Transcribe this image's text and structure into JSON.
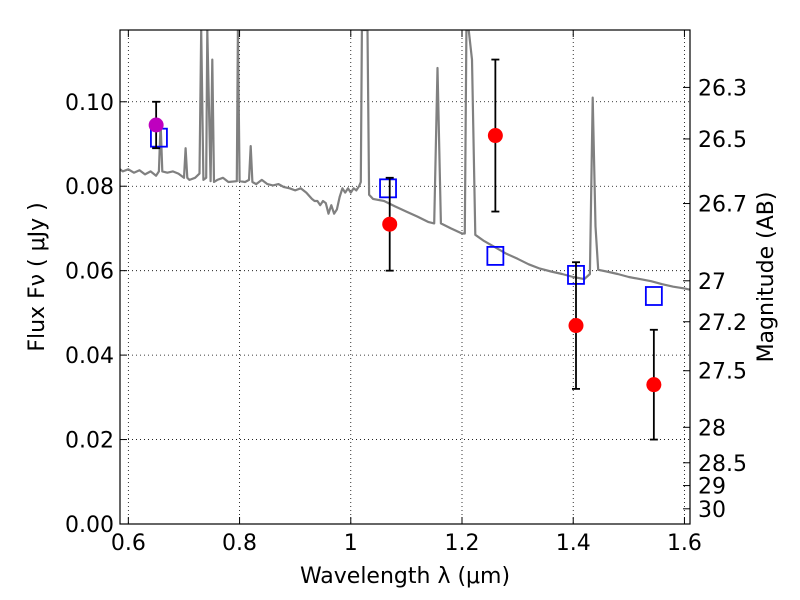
{
  "chart_data": {
    "type": "scatter",
    "xlabel": "Wavelength  λ (μm)",
    "ylabel": "Flux  Fν  ( μJy )",
    "ylabel_right": "Magnitude (AB)",
    "xlim": [
      0.585,
      1.61
    ],
    "ylim": [
      0.0,
      0.117
    ],
    "grid": true,
    "x_ticks": [
      0.6,
      0.8,
      1.0,
      1.2,
      1.4,
      1.6
    ],
    "x_tick_labels": [
      "0.6",
      "0.8",
      "1",
      "1.2",
      "1.4",
      "1.6"
    ],
    "y_ticks": [
      0.0,
      0.02,
      0.04,
      0.06,
      0.08,
      0.1
    ],
    "y_tick_labels": [
      "0.00",
      "0.02",
      "0.04",
      "0.06",
      "0.08",
      "0.10"
    ],
    "mag_ticks": [
      {
        "label": "26.3",
        "flux": 0.1034
      },
      {
        "label": "26.5",
        "flux": 0.0912
      },
      {
        "label": "26.7",
        "flux": 0.0759
      },
      {
        "label": "27",
        "flux": 0.0576
      },
      {
        "label": "27.2",
        "flux": 0.0479
      },
      {
        "label": "27.5",
        "flux": 0.0363
      },
      {
        "label": "28",
        "flux": 0.0229
      },
      {
        "label": "28.5",
        "flux": 0.0145
      },
      {
        "label": "29",
        "flux": 0.0091
      },
      {
        "label": "30",
        "flux": 0.0036
      }
    ],
    "series": [
      {
        "kind": "observed",
        "color": "#ff0000",
        "points": [
          {
            "x": 1.07,
            "y": 0.071,
            "yerr_low": 0.06,
            "yerr_high": 0.082
          },
          {
            "x": 1.26,
            "y": 0.092,
            "yerr_low": 0.074,
            "yerr_high": 0.11
          },
          {
            "x": 1.405,
            "y": 0.047,
            "yerr_low": 0.032,
            "yerr_high": 0.062
          },
          {
            "x": 1.545,
            "y": 0.033,
            "yerr_low": 0.02,
            "yerr_high": 0.046
          }
        ]
      },
      {
        "kind": "observed-optical",
        "color": "#bf00bf",
        "points": [
          {
            "x": 0.65,
            "y": 0.0945,
            "yerr_low": 0.089,
            "yerr_high": 0.1
          }
        ]
      },
      {
        "kind": "model-photometry",
        "color": "#0000ff",
        "points": [
          {
            "x": 0.655,
            "y": 0.0915
          },
          {
            "x": 1.067,
            "y": 0.0795
          },
          {
            "x": 1.26,
            "y": 0.0635
          },
          {
            "x": 1.405,
            "y": 0.059
          },
          {
            "x": 1.545,
            "y": 0.054
          }
        ]
      },
      {
        "kind": "template-spectrum",
        "color": "#808080",
        "points": [
          [
            0.585,
            0.084
          ],
          [
            0.59,
            0.0835
          ],
          [
            0.6,
            0.084
          ],
          [
            0.61,
            0.0832
          ],
          [
            0.62,
            0.0838
          ],
          [
            0.63,
            0.0828
          ],
          [
            0.64,
            0.0835
          ],
          [
            0.65,
            0.0825
          ],
          [
            0.655,
            0.0835
          ],
          [
            0.658,
            0.095
          ],
          [
            0.661,
            0.0835
          ],
          [
            0.67,
            0.0832
          ],
          [
            0.68,
            0.0835
          ],
          [
            0.69,
            0.083
          ],
          [
            0.7,
            0.082
          ],
          [
            0.703,
            0.089
          ],
          [
            0.706,
            0.082
          ],
          [
            0.71,
            0.0815
          ],
          [
            0.72,
            0.082
          ],
          [
            0.728,
            0.083
          ],
          [
            0.731,
            0.117
          ],
          [
            0.735,
            0.0815
          ],
          [
            0.74,
            0.082
          ],
          [
            0.742,
            0.117
          ],
          [
            0.748,
            0.0812
          ],
          [
            0.751,
            0.11
          ],
          [
            0.754,
            0.081
          ],
          [
            0.76,
            0.0815
          ],
          [
            0.77,
            0.082
          ],
          [
            0.78,
            0.081
          ],
          [
            0.795,
            0.0812
          ],
          [
            0.797,
            0.117
          ],
          [
            0.8,
            0.0812
          ],
          [
            0.81,
            0.081
          ],
          [
            0.817,
            0.0815
          ],
          [
            0.82,
            0.0895
          ],
          [
            0.823,
            0.081
          ],
          [
            0.83,
            0.0805
          ],
          [
            0.84,
            0.0815
          ],
          [
            0.85,
            0.0805
          ],
          [
            0.86,
            0.0802
          ],
          [
            0.87,
            0.0805
          ],
          [
            0.88,
            0.0798
          ],
          [
            0.89,
            0.0795
          ],
          [
            0.9,
            0.079
          ],
          [
            0.91,
            0.0795
          ],
          [
            0.92,
            0.0785
          ],
          [
            0.93,
            0.077
          ],
          [
            0.935,
            0.0765
          ],
          [
            0.94,
            0.0765
          ],
          [
            0.945,
            0.0755
          ],
          [
            0.95,
            0.0765
          ],
          [
            0.955,
            0.076
          ],
          [
            0.96,
            0.0735
          ],
          [
            0.965,
            0.0755
          ],
          [
            0.97,
            0.0735
          ],
          [
            0.975,
            0.0745
          ],
          [
            0.98,
            0.0775
          ],
          [
            0.985,
            0.0795
          ],
          [
            0.99,
            0.0785
          ],
          [
            0.995,
            0.0795
          ],
          [
            1.0,
            0.0785
          ],
          [
            1.005,
            0.0795
          ],
          [
            1.01,
            0.079
          ],
          [
            1.015,
            0.08
          ],
          [
            1.018,
            0.081
          ],
          [
            1.02,
            0.117
          ],
          [
            1.03,
            0.117
          ],
          [
            1.033,
            0.078
          ],
          [
            1.04,
            0.077
          ],
          [
            1.06,
            0.0765
          ],
          [
            1.08,
            0.0752
          ],
          [
            1.1,
            0.074
          ],
          [
            1.12,
            0.0728
          ],
          [
            1.14,
            0.0715
          ],
          [
            1.15,
            0.0712
          ],
          [
            1.156,
            0.108
          ],
          [
            1.162,
            0.0712
          ],
          [
            1.18,
            0.07
          ],
          [
            1.2,
            0.0688
          ],
          [
            1.205,
            0.0688
          ],
          [
            1.208,
            0.117
          ],
          [
            1.212,
            0.117
          ],
          [
            1.218,
            0.11
          ],
          [
            1.224,
            0.0685
          ],
          [
            1.24,
            0.067
          ],
          [
            1.26,
            0.0655
          ],
          [
            1.28,
            0.064
          ],
          [
            1.3,
            0.0628
          ],
          [
            1.32,
            0.0615
          ],
          [
            1.34,
            0.0605
          ],
          [
            1.36,
            0.0598
          ],
          [
            1.38,
            0.0592
          ],
          [
            1.4,
            0.0585
          ],
          [
            1.42,
            0.058
          ],
          [
            1.43,
            0.0592
          ],
          [
            1.435,
            0.101
          ],
          [
            1.44,
            0.0705
          ],
          [
            1.445,
            0.0602
          ],
          [
            1.46,
            0.0598
          ],
          [
            1.48,
            0.0592
          ],
          [
            1.5,
            0.0585
          ],
          [
            1.52,
            0.058
          ],
          [
            1.54,
            0.0575
          ],
          [
            1.56,
            0.0568
          ],
          [
            1.58,
            0.0562
          ],
          [
            1.6,
            0.0558
          ],
          [
            1.61,
            0.0555
          ]
        ]
      }
    ]
  }
}
